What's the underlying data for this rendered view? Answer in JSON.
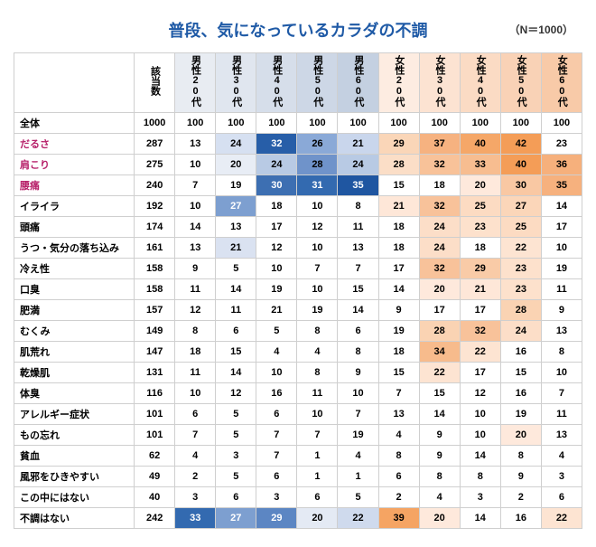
{
  "title": "普段、気になっているカラダの不調",
  "sample_label": "（N＝1000）",
  "title_color": "#1f5aa6",
  "sample_color": "#333333",
  "header_bgcolors": [
    "#ffffff",
    "#ffffff",
    "#e8ecf2",
    "#e0e6ef",
    "#d6deea",
    "#cdd7e6",
    "#c4d0e1",
    "#fdece1",
    "#fce3d2",
    "#fbdbc4",
    "#f9d2b6",
    "#f8caa8"
  ],
  "columns": [
    "該当数",
    "男性20代",
    "男性30代",
    "男性40代",
    "男性50代",
    "男性60代",
    "女性20代",
    "女性30代",
    "女性40代",
    "女性50代",
    "女性60代"
  ],
  "total_row": {
    "label": "全体",
    "count": "1000",
    "values": [
      "100",
      "100",
      "100",
      "100",
      "100",
      "100",
      "100",
      "100",
      "100",
      "100"
    ]
  },
  "rows": [
    {
      "label": "だるさ",
      "label_color": "#b7216a",
      "count": "287",
      "values": [
        "13",
        "24",
        "32",
        "26",
        "21",
        "29",
        "37",
        "40",
        "42",
        "23"
      ],
      "cell_bg": [
        "",
        "#d6e0f1",
        "#275ea8",
        "#8aa9d7",
        "#c9d6ec",
        "#fad6b8",
        "#f6b280",
        "#f5a768",
        "#f49d57",
        ""
      ],
      "cell_fg": [
        "",
        "",
        "#ffffff",
        "",
        "",
        "",
        "",
        "",
        "",
        ""
      ]
    },
    {
      "label": "肩こり",
      "label_color": "#b7216a",
      "count": "275",
      "values": [
        "10",
        "20",
        "24",
        "28",
        "24",
        "28",
        "32",
        "33",
        "40",
        "36"
      ],
      "cell_bg": [
        "",
        "#e8edf5",
        "#b8cae4",
        "#6f93ca",
        "#b8cae4",
        "#fbdec7",
        "#f8c299",
        "#f7bd90",
        "#f49d57",
        "#f6b07c"
      ],
      "cell_fg": [
        "",
        "",
        "",
        "",
        "",
        "",
        "",
        "",
        "",
        ""
      ]
    },
    {
      "label": "腰痛",
      "label_color": "#b7216a",
      "count": "240",
      "values": [
        "7",
        "19",
        "30",
        "31",
        "35",
        "15",
        "18",
        "20",
        "30",
        "35"
      ],
      "cell_bg": [
        "",
        "",
        "#3d6fb2",
        "#336ab0",
        "#1f56a1",
        "",
        "",
        "#fee9dc",
        "#f9c8a3",
        "#f6b17e"
      ],
      "cell_fg": [
        "",
        "",
        "#ffffff",
        "#ffffff",
        "#ffffff",
        "",
        "",
        "",
        "",
        ""
      ]
    },
    {
      "label": "イライラ",
      "count": "192",
      "values": [
        "10",
        "27",
        "18",
        "10",
        "8",
        "21",
        "32",
        "25",
        "27",
        "14"
      ],
      "cell_bg": [
        "",
        "#7d9fd0",
        "",
        "",
        "",
        "#fee7d8",
        "#f8c29a",
        "#fcdbc2",
        "#fbd6b9",
        ""
      ],
      "cell_fg": [
        "",
        "#ffffff",
        "",
        "",
        "",
        "",
        "",
        "",
        "",
        ""
      ]
    },
    {
      "label": "頭痛",
      "count": "174",
      "values": [
        "14",
        "13",
        "17",
        "12",
        "11",
        "18",
        "24",
        "23",
        "25",
        "17"
      ],
      "cell_bg": [
        "",
        "",
        "",
        "",
        "",
        "",
        "#fcdec8",
        "#fde1cc",
        "#fcdbc2",
        ""
      ]
    },
    {
      "label": "うつ・気分の落ち込み",
      "count": "161",
      "values": [
        "13",
        "21",
        "12",
        "10",
        "13",
        "18",
        "24",
        "18",
        "22",
        "10"
      ],
      "cell_bg": [
        "",
        "#dae2f1",
        "",
        "",
        "",
        "",
        "#fcdec8",
        "",
        "#fde4d2",
        ""
      ]
    },
    {
      "label": "冷え性",
      "count": "158",
      "values": [
        "9",
        "5",
        "10",
        "7",
        "7",
        "17",
        "32",
        "29",
        "23",
        "19"
      ],
      "cell_bg": [
        "",
        "",
        "",
        "",
        "",
        "",
        "#f8c29a",
        "#f9cba7",
        "#fde1cc",
        ""
      ]
    },
    {
      "label": "口臭",
      "count": "158",
      "values": [
        "11",
        "14",
        "19",
        "10",
        "15",
        "14",
        "20",
        "21",
        "23",
        "11"
      ],
      "cell_bg": [
        "",
        "",
        "",
        "",
        "",
        "",
        "#fee9dc",
        "#fee7d8",
        "#fde1cc",
        ""
      ]
    },
    {
      "label": "肥満",
      "count": "157",
      "values": [
        "12",
        "11",
        "21",
        "19",
        "14",
        "9",
        "17",
        "17",
        "28",
        "9"
      ],
      "cell_bg": [
        "",
        "",
        "",
        "",
        "",
        "",
        "",
        "",
        "#fad3b3",
        ""
      ]
    },
    {
      "label": "むくみ",
      "count": "149",
      "values": [
        "8",
        "6",
        "5",
        "8",
        "6",
        "19",
        "28",
        "32",
        "24",
        "13"
      ],
      "cell_bg": [
        "",
        "",
        "",
        "",
        "",
        "",
        "#fad3b3",
        "#f8c29a",
        "#fcdec8",
        ""
      ]
    },
    {
      "label": "肌荒れ",
      "count": "147",
      "values": [
        "18",
        "15",
        "4",
        "4",
        "8",
        "18",
        "34",
        "22",
        "16",
        "8"
      ],
      "cell_bg": [
        "",
        "",
        "",
        "",
        "",
        "",
        "#f7bb8c",
        "#fde4d2",
        "",
        ""
      ]
    },
    {
      "label": "乾燥肌",
      "count": "131",
      "values": [
        "11",
        "14",
        "10",
        "8",
        "9",
        "15",
        "22",
        "17",
        "15",
        "10"
      ],
      "cell_bg": [
        "",
        "",
        "",
        "",
        "",
        "",
        "#fde4d2",
        "",
        "",
        ""
      ]
    },
    {
      "label": "体臭",
      "count": "116",
      "values": [
        "10",
        "12",
        "16",
        "11",
        "10",
        "7",
        "15",
        "12",
        "16",
        "7"
      ],
      "cell_bg": [
        "",
        "",
        "",
        "",
        "",
        "",
        "",
        "",
        "",
        ""
      ]
    },
    {
      "label": "アレルギー症状",
      "count": "101",
      "values": [
        "6",
        "5",
        "6",
        "10",
        "7",
        "13",
        "14",
        "10",
        "19",
        "11"
      ],
      "cell_bg": [
        "",
        "",
        "",
        "",
        "",
        "",
        "",
        "",
        "",
        ""
      ]
    },
    {
      "label": "もの忘れ",
      "count": "101",
      "values": [
        "7",
        "5",
        "7",
        "7",
        "19",
        "4",
        "9",
        "10",
        "20",
        "13"
      ],
      "cell_bg": [
        "",
        "",
        "",
        "",
        "",
        "",
        "",
        "",
        "#fee9dc",
        ""
      ]
    },
    {
      "label": "貧血",
      "count": "62",
      "values": [
        "4",
        "3",
        "7",
        "1",
        "4",
        "8",
        "9",
        "14",
        "8",
        "4"
      ],
      "cell_bg": [
        "",
        "",
        "",
        "",
        "",
        "",
        "",
        "",
        "",
        ""
      ]
    },
    {
      "label": "風邪をひきやすい",
      "count": "49",
      "values": [
        "2",
        "5",
        "6",
        "1",
        "1",
        "6",
        "8",
        "8",
        "9",
        "3"
      ],
      "cell_bg": [
        "",
        "",
        "",
        "",
        "",
        "",
        "",
        "",
        "",
        ""
      ]
    },
    {
      "label": "この中にはない",
      "count": "40",
      "values": [
        "3",
        "6",
        "3",
        "6",
        "5",
        "2",
        "4",
        "3",
        "2",
        "6"
      ],
      "cell_bg": [
        "",
        "",
        "",
        "",
        "",
        "",
        "",
        "",
        "",
        ""
      ]
    },
    {
      "label": "不調はない",
      "count": "242",
      "values": [
        "33",
        "27",
        "29",
        "20",
        "22",
        "39",
        "20",
        "14",
        "16",
        "22"
      ],
      "cell_bg": [
        "#336ab0",
        "#7d9fd0",
        "#5c86c3",
        "#e4eaf4",
        "#cfdaed",
        "#f5a463",
        "#fee9dc",
        "",
        "",
        "#fde4d2"
      ],
      "cell_fg": [
        "#ffffff",
        "#ffffff",
        "#ffffff",
        "",
        "",
        "",
        "",
        "",
        "",
        ""
      ]
    }
  ]
}
